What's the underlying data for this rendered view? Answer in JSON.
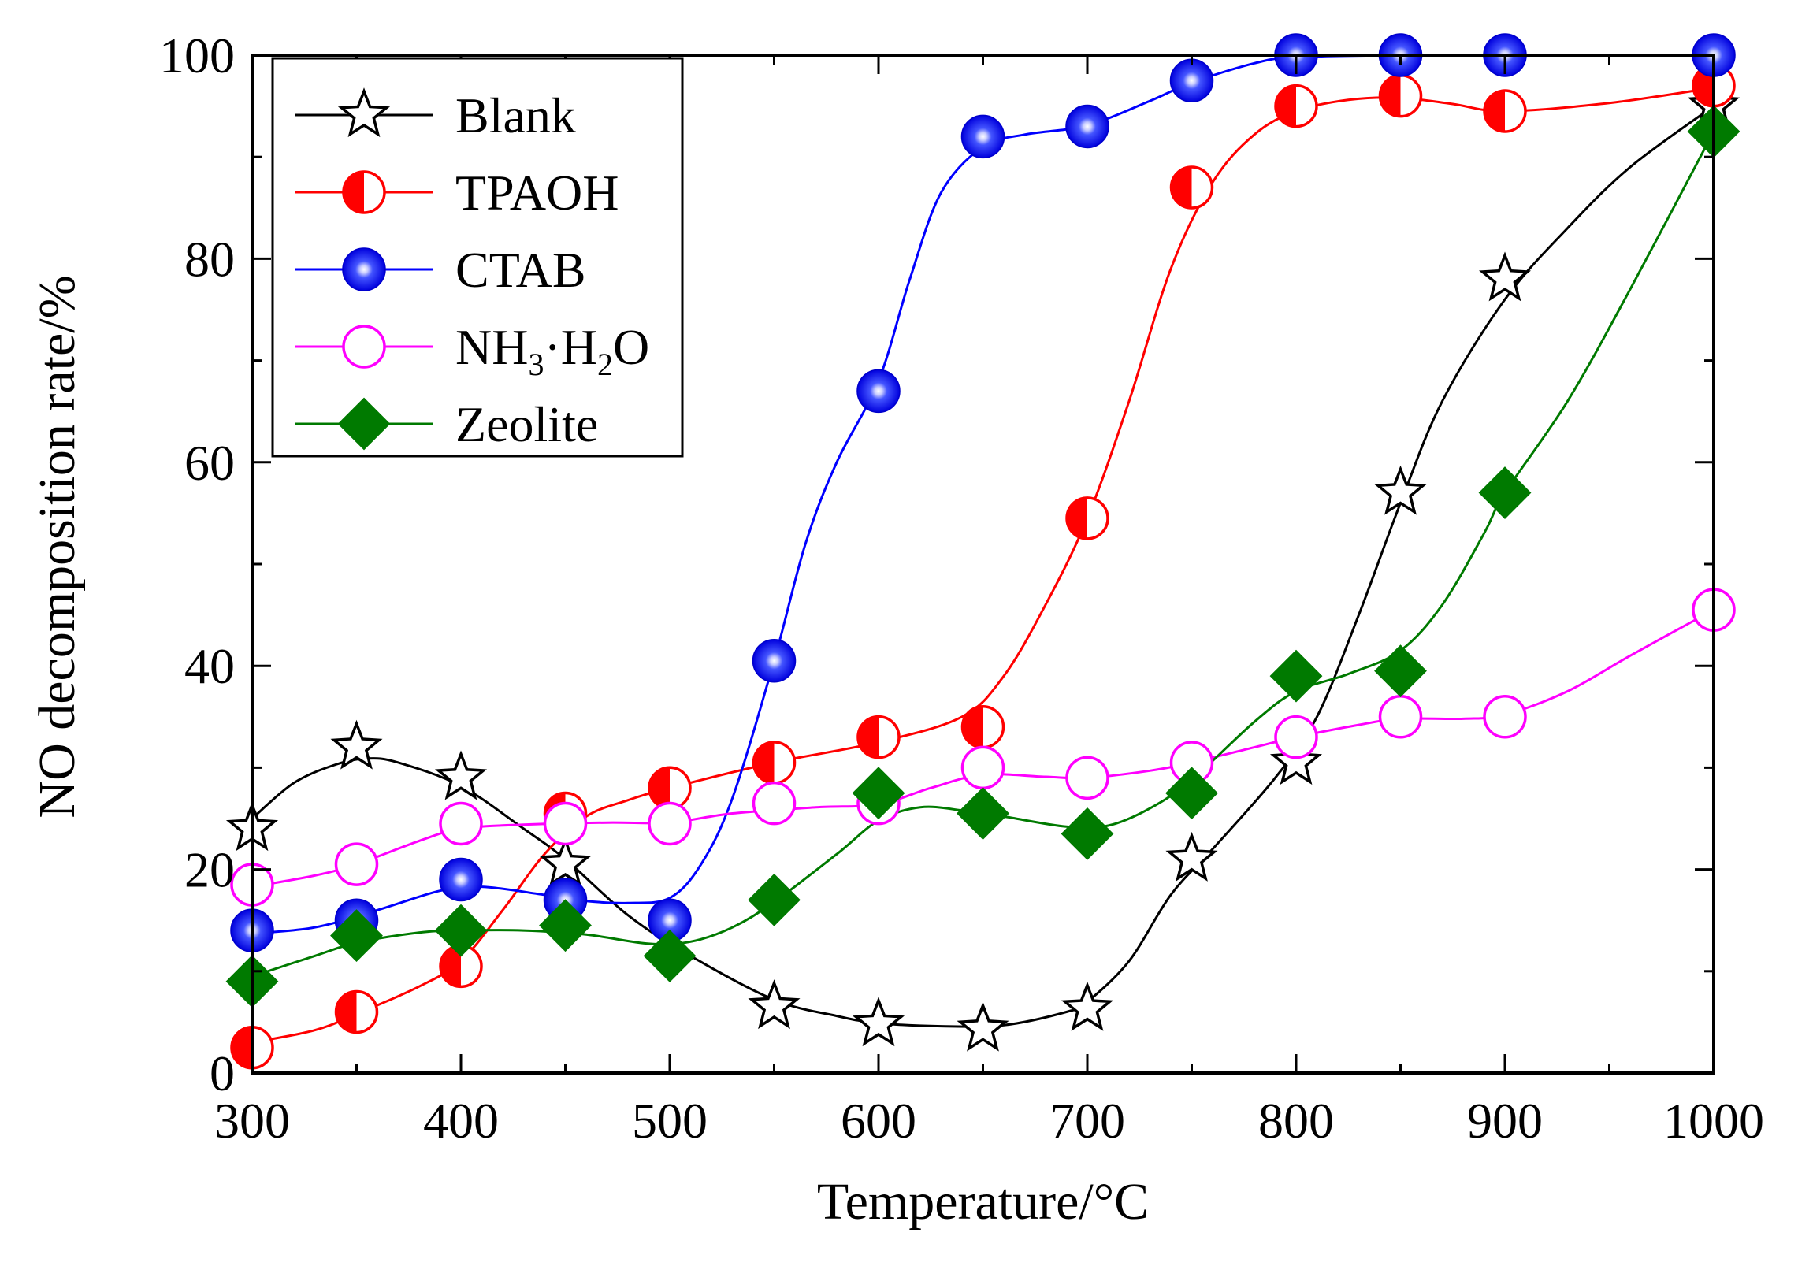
{
  "chart_data": {
    "type": "line",
    "xlabel": "Temperature/°C",
    "ylabel": "NO decomposition rate/%",
    "xlim": [
      300,
      1000
    ],
    "ylim": [
      0,
      100
    ],
    "xticks": [
      300,
      400,
      500,
      600,
      700,
      800,
      900,
      1000
    ],
    "yticks": [
      0,
      20,
      40,
      60,
      80,
      100
    ],
    "x_tick_labels": [
      "300",
      "400",
      "500",
      "600",
      "700",
      "800",
      "900",
      "1000"
    ],
    "y_tick_labels": [
      "0",
      "20",
      "40",
      "60",
      "80",
      "100"
    ],
    "legend_position": "top-left",
    "x": [
      300,
      350,
      400,
      450,
      500,
      550,
      600,
      650,
      700,
      750,
      800,
      850,
      900,
      1000
    ],
    "series": [
      {
        "name": "Blank",
        "color": "#000000",
        "marker": "star",
        "points": [
          [
            300,
            24
          ],
          [
            350,
            32
          ],
          [
            400,
            29
          ],
          [
            450,
            20.5
          ],
          [
            550,
            6.5
          ],
          [
            600,
            4.8
          ],
          [
            650,
            4.3
          ],
          [
            700,
            6.3
          ],
          [
            750,
            21
          ],
          [
            800,
            30.5
          ],
          [
            850,
            57
          ],
          [
            900,
            78
          ],
          [
            1000,
            95
          ]
        ],
        "curve": [
          [
            300,
            25
          ],
          [
            320,
            28.5
          ],
          [
            340,
            30.3
          ],
          [
            355,
            30.9
          ],
          [
            370,
            30.5
          ],
          [
            400,
            28.2
          ],
          [
            430,
            24
          ],
          [
            450,
            21
          ],
          [
            480,
            15.5
          ],
          [
            510,
            11.5
          ],
          [
            550,
            7.2
          ],
          [
            580,
            5.6
          ],
          [
            600,
            4.9
          ],
          [
            630,
            4.6
          ],
          [
            660,
            4.7
          ],
          [
            690,
            6
          ],
          [
            700,
            7
          ],
          [
            720,
            11
          ],
          [
            740,
            17.5
          ],
          [
            760,
            22
          ],
          [
            790,
            29
          ],
          [
            810,
            35
          ],
          [
            830,
            45
          ],
          [
            850,
            56
          ],
          [
            870,
            66
          ],
          [
            900,
            76
          ],
          [
            930,
            83
          ],
          [
            960,
            89
          ],
          [
            1000,
            95
          ]
        ]
      },
      {
        "name": "TPAOH",
        "color": "#ff0000",
        "marker": "half-circle",
        "points": [
          [
            300,
            2.5
          ],
          [
            350,
            6
          ],
          [
            400,
            10.5
          ],
          [
            450,
            25.5
          ],
          [
            500,
            28
          ],
          [
            550,
            30.5
          ],
          [
            600,
            33
          ],
          [
            650,
            34
          ],
          [
            700,
            54.5
          ],
          [
            750,
            87
          ],
          [
            800,
            95
          ],
          [
            850,
            96
          ],
          [
            900,
            94.5
          ],
          [
            1000,
            97
          ]
        ],
        "curve": [
          [
            300,
            3
          ],
          [
            330,
            4.2
          ],
          [
            350,
            5.8
          ],
          [
            380,
            8.5
          ],
          [
            400,
            11
          ],
          [
            420,
            16
          ],
          [
            440,
            21.5
          ],
          [
            460,
            25.2
          ],
          [
            480,
            26.8
          ],
          [
            500,
            28
          ],
          [
            550,
            30.5
          ],
          [
            600,
            32.5
          ],
          [
            640,
            35
          ],
          [
            660,
            39
          ],
          [
            680,
            46
          ],
          [
            700,
            54.5
          ],
          [
            720,
            66
          ],
          [
            740,
            79
          ],
          [
            760,
            87.5
          ],
          [
            780,
            92.2
          ],
          [
            800,
            94.5
          ],
          [
            825,
            95.6
          ],
          [
            850,
            95.8
          ],
          [
            875,
            95.2
          ],
          [
            900,
            94.5
          ],
          [
            950,
            95.3
          ],
          [
            1000,
            96.8
          ]
        ]
      },
      {
        "name": "CTAB",
        "color": "#0000ff",
        "marker": "sphere",
        "points": [
          [
            300,
            14
          ],
          [
            350,
            15
          ],
          [
            400,
            19
          ],
          [
            450,
            17
          ],
          [
            500,
            15
          ],
          [
            550,
            40.5
          ],
          [
            600,
            67
          ],
          [
            650,
            92
          ],
          [
            700,
            93
          ],
          [
            750,
            97.5
          ],
          [
            800,
            100
          ],
          [
            850,
            100
          ],
          [
            900,
            100
          ],
          [
            1000,
            100
          ]
        ],
        "curve": [
          [
            300,
            13.7
          ],
          [
            330,
            14.3
          ],
          [
            360,
            16
          ],
          [
            390,
            17.9
          ],
          [
            410,
            18.3
          ],
          [
            440,
            17.5
          ],
          [
            460,
            16.9
          ],
          [
            480,
            16.7
          ],
          [
            500,
            17.2
          ],
          [
            515,
            20.5
          ],
          [
            530,
            27
          ],
          [
            550,
            40.5
          ],
          [
            565,
            52
          ],
          [
            580,
            60
          ],
          [
            600,
            68
          ],
          [
            615,
            78
          ],
          [
            630,
            86.5
          ],
          [
            650,
            91
          ],
          [
            670,
            92.2
          ],
          [
            700,
            93.1
          ],
          [
            730,
            95.5
          ],
          [
            750,
            97.3
          ],
          [
            780,
            99.2
          ],
          [
            800,
            99.8
          ],
          [
            850,
            100
          ],
          [
            900,
            100
          ],
          [
            1000,
            100
          ]
        ]
      },
      {
        "name": "NH3·H2O",
        "color": "#ff00ff",
        "marker": "open-circle",
        "points": [
          [
            300,
            18.5
          ],
          [
            350,
            20.5
          ],
          [
            400,
            24.5
          ],
          [
            450,
            24.5
          ],
          [
            500,
            24.5
          ],
          [
            550,
            26.5
          ],
          [
            600,
            26.5
          ],
          [
            650,
            30
          ],
          [
            700,
            29
          ],
          [
            750,
            30.5
          ],
          [
            800,
            33
          ],
          [
            850,
            35
          ],
          [
            900,
            35
          ],
          [
            1000,
            45.5
          ]
        ],
        "curve": [
          [
            300,
            18.3
          ],
          [
            330,
            19.4
          ],
          [
            350,
            20.5
          ],
          [
            380,
            22.8
          ],
          [
            400,
            24
          ],
          [
            430,
            24.4
          ],
          [
            470,
            24.6
          ],
          [
            500,
            24.6
          ],
          [
            530,
            25.5
          ],
          [
            570,
            26.1
          ],
          [
            600,
            26.4
          ],
          [
            625,
            28
          ],
          [
            650,
            29.3
          ],
          [
            680,
            29.1
          ],
          [
            700,
            29
          ],
          [
            730,
            29.7
          ],
          [
            750,
            30.5
          ],
          [
            780,
            32
          ],
          [
            800,
            33
          ],
          [
            830,
            34.2
          ],
          [
            850,
            34.8
          ],
          [
            880,
            34.8
          ],
          [
            900,
            35.2
          ],
          [
            930,
            37.5
          ],
          [
            960,
            41
          ],
          [
            1000,
            45.5
          ]
        ]
      },
      {
        "name": "Zeolite",
        "color": "#007a00",
        "marker": "diamond",
        "points": [
          [
            300,
            9
          ],
          [
            350,
            13.5
          ],
          [
            400,
            14
          ],
          [
            450,
            14.5
          ],
          [
            500,
            11.5
          ],
          [
            550,
            17
          ],
          [
            600,
            27.5
          ],
          [
            650,
            25.5
          ],
          [
            700,
            23.5
          ],
          [
            750,
            27.5
          ],
          [
            800,
            39
          ],
          [
            850,
            39.5
          ],
          [
            900,
            57
          ],
          [
            1000,
            92.5
          ]
        ],
        "curve": [
          [
            300,
            9.5
          ],
          [
            330,
            11.5
          ],
          [
            350,
            12.8
          ],
          [
            380,
            13.8
          ],
          [
            400,
            14
          ],
          [
            430,
            14
          ],
          [
            460,
            13.6
          ],
          [
            490,
            12.7
          ],
          [
            510,
            12.9
          ],
          [
            530,
            14.3
          ],
          [
            550,
            16.8
          ],
          [
            580,
            21.5
          ],
          [
            600,
            24.8
          ],
          [
            620,
            26.1
          ],
          [
            640,
            25.8
          ],
          [
            660,
            25.2
          ],
          [
            690,
            24.2
          ],
          [
            710,
            24.3
          ],
          [
            730,
            26
          ],
          [
            750,
            28.8
          ],
          [
            780,
            34.5
          ],
          [
            800,
            37.5
          ],
          [
            825,
            39.2
          ],
          [
            850,
            41.5
          ],
          [
            870,
            46
          ],
          [
            890,
            53
          ],
          [
            900,
            57
          ],
          [
            930,
            66
          ],
          [
            960,
            77
          ],
          [
            1000,
            92.5
          ]
        ]
      }
    ]
  }
}
